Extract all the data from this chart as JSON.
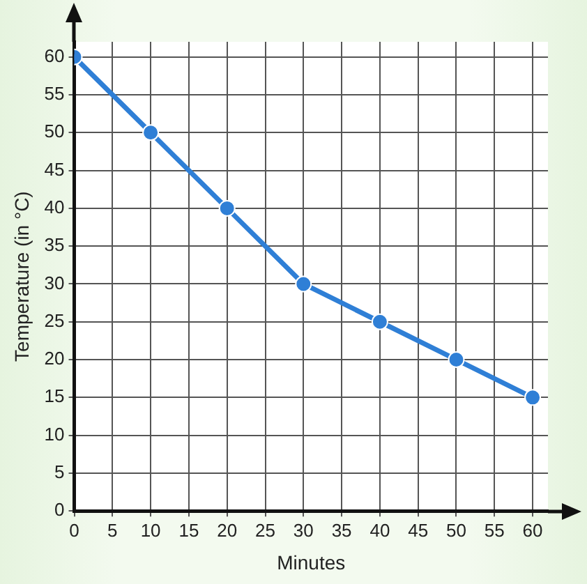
{
  "chart_data": {
    "type": "line",
    "xlabel": "Minutes",
    "ylabel": "Temperature (in °C)",
    "x": [
      0,
      10,
      20,
      30,
      40,
      50,
      60
    ],
    "series": [
      {
        "color": "#2f7fd6",
        "values": [
          60,
          50,
          40,
          30,
          25,
          20,
          15
        ]
      }
    ],
    "xlim": [
      0,
      62
    ],
    "xticks": [
      0,
      5,
      10,
      15,
      20,
      25,
      30,
      35,
      40,
      45,
      50,
      55,
      60
    ],
    "ylim": [
      0,
      62
    ],
    "yticks": [
      0,
      5,
      10,
      15,
      20,
      25,
      30,
      35,
      40,
      45,
      50,
      55,
      60
    ],
    "grid": true,
    "legend": false,
    "marker": "circle",
    "line_style": "solid"
  }
}
